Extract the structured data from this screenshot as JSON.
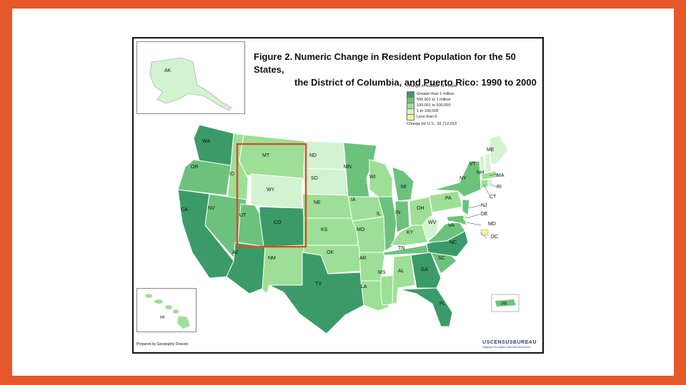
{
  "figure": {
    "title_number": "Figure 2.",
    "title_line1": "Numeric Change in Resident Population for the 50 States,",
    "title_line2": "the District of Columbia, and Puerto Rico: 1990 to 2000",
    "credit": "Prepared by Geography Division",
    "census_logo": "USCENSUSBUREAU",
    "census_tagline": "Helping You Make Informed Decisions"
  },
  "legend": {
    "header": "Change in Number of People",
    "items": [
      {
        "label": "Greater than 1 million",
        "color": "#3b9b68"
      },
      {
        "label": "500,001 to 1 million",
        "color": "#6cc27c"
      },
      {
        "label": "100,001 to 500,000",
        "color": "#9ddf96"
      },
      {
        "label": "1 to 100,000",
        "color": "#d2f3cf"
      },
      {
        "label": "Less than 0",
        "color": "#f3f3a0"
      }
    ],
    "total": "Change for U.S.: 32,712,033"
  },
  "colors": {
    "slide_border": "#e4582b",
    "highlight_box": "#d2512a",
    "state_border": "#ffffff",
    "water": "#ffffff"
  },
  "states": {
    "WA": "WA",
    "OR": "OR",
    "CA": "CA",
    "ID": "ID",
    "NV": "NV",
    "AZ": "AZ",
    "MT": "MT",
    "WY": "WY",
    "UT": "UT",
    "CO": "CO",
    "NM": "NM",
    "ND": "ND",
    "SD": "SD",
    "NE": "NE",
    "KS": "KS",
    "OK": "OK",
    "TX": "TX",
    "MN": "MN",
    "IA": "IA",
    "MO": "MO",
    "AR": "AR",
    "LA": "LA",
    "WI": "WI",
    "IL": "IL",
    "MS": "MS",
    "MI": "MI",
    "IN": "IN",
    "KY": "KY",
    "TN": "TN",
    "AL": "AL",
    "OH": "OH",
    "WV": "WV",
    "GA": "GA",
    "FL": "FL",
    "SC": "SC",
    "NC": "NC",
    "VA": "VA",
    "PA": "PA",
    "NY": "NY",
    "VT": "VT",
    "NH": "NH",
    "ME": "ME",
    "MA": "MA",
    "RI": "RI",
    "CT": "CT",
    "NJ": "NJ",
    "DE": "DE",
    "MD": "MD",
    "DC": "DC",
    "AK": "AK",
    "HI": "HI",
    "PR": "PR"
  }
}
